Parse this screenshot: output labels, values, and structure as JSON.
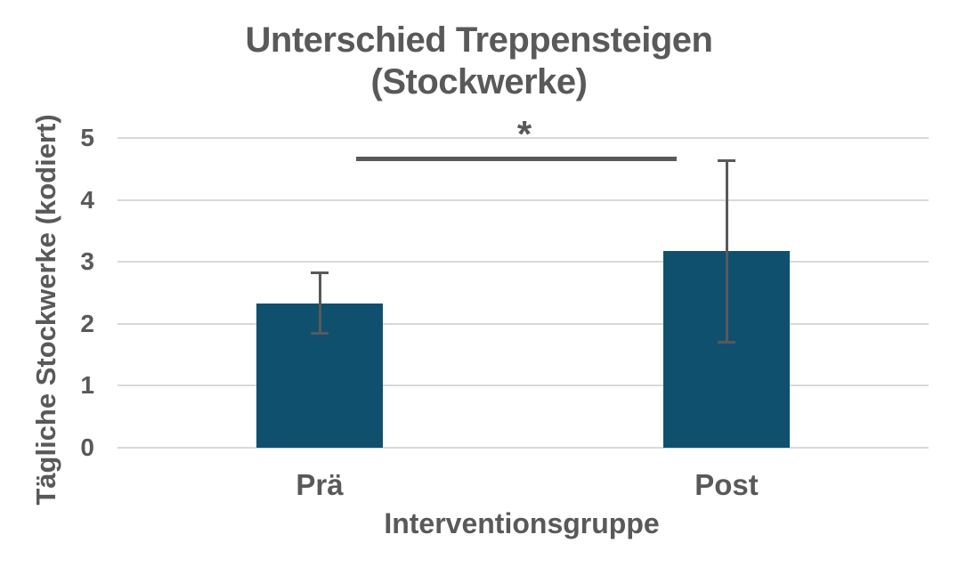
{
  "chart_data": {
    "type": "bar",
    "title": "Unterschied Treppensteigen (Stockwerke)",
    "title_lines": [
      "Unterschied Treppensteigen",
      "(Stockwerke)"
    ],
    "xlabel": "Interventionsgruppe",
    "ylabel": "Tägliche Stockwerke (kodiert)",
    "categories": [
      "Prä",
      "Post"
    ],
    "values": [
      2.33,
      3.17
    ],
    "error_bars": {
      "upper": [
        2.83,
        4.64
      ],
      "lower": [
        1.84,
        1.7
      ]
    },
    "ylim": [
      0,
      5
    ],
    "yticks": [
      0,
      1,
      2,
      3,
      4,
      5
    ],
    "grid": "horizontal",
    "legend": "none",
    "significance": {
      "label": "*",
      "between": [
        "Prä",
        "Post"
      ],
      "line_y_value": 4.67
    },
    "colors": {
      "bar": "#0f506f",
      "text": "#595959",
      "gridline": "#d9d9d9",
      "error_bar": "#595959",
      "background": "#ffffff"
    }
  }
}
